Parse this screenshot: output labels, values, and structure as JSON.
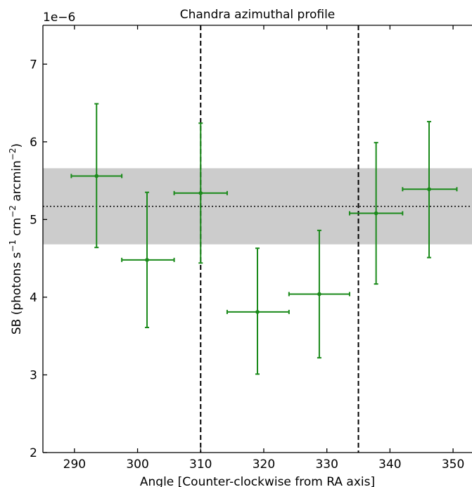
{
  "chart_data": {
    "type": "scatter",
    "title": "Chandra azimuthal profile",
    "xlabel": "Angle [Counter-clockwise from RA axis]",
    "ylabel_parts": [
      "SB (photons s",
      "−1",
      " cm",
      "−2",
      " arcmin",
      "−2",
      ")"
    ],
    "y_offset_label": "1e−6",
    "xlim": [
      285,
      353
    ],
    "ylim": [
      2,
      7.5
    ],
    "x_ticks": [
      290,
      300,
      310,
      320,
      330,
      340,
      350
    ],
    "y_ticks": [
      2,
      3,
      4,
      5,
      6,
      7
    ],
    "mean_line": 5.17,
    "band": [
      4.68,
      5.66
    ],
    "vertical_lines": [
      310,
      335
    ],
    "series_color": "#1a8a1a",
    "band_color": "#cccccc",
    "points": [
      {
        "x": 293.5,
        "y": 5.56,
        "xerr_low": 289.5,
        "xerr_high": 297.5,
        "yerr_low": 4.64,
        "yerr_high": 6.49
      },
      {
        "x": 301.5,
        "y": 4.48,
        "xerr_low": 297.5,
        "xerr_high": 305.8,
        "yerr_low": 3.61,
        "yerr_high": 5.35
      },
      {
        "x": 310.0,
        "y": 5.34,
        "xerr_low": 305.8,
        "xerr_high": 314.2,
        "yerr_low": 4.44,
        "yerr_high": 6.24
      },
      {
        "x": 319.0,
        "y": 3.81,
        "xerr_low": 314.2,
        "xerr_high": 324.0,
        "yerr_low": 3.01,
        "yerr_high": 4.63
      },
      {
        "x": 328.8,
        "y": 4.04,
        "xerr_low": 324.0,
        "xerr_high": 333.6,
        "yerr_low": 3.22,
        "yerr_high": 4.86
      },
      {
        "x": 337.8,
        "y": 5.08,
        "xerr_low": 333.6,
        "xerr_high": 342.0,
        "yerr_low": 4.17,
        "yerr_high": 5.99
      },
      {
        "x": 346.2,
        "y": 5.39,
        "xerr_low": 342.0,
        "xerr_high": 350.6,
        "yerr_low": 4.51,
        "yerr_high": 6.26
      }
    ]
  }
}
